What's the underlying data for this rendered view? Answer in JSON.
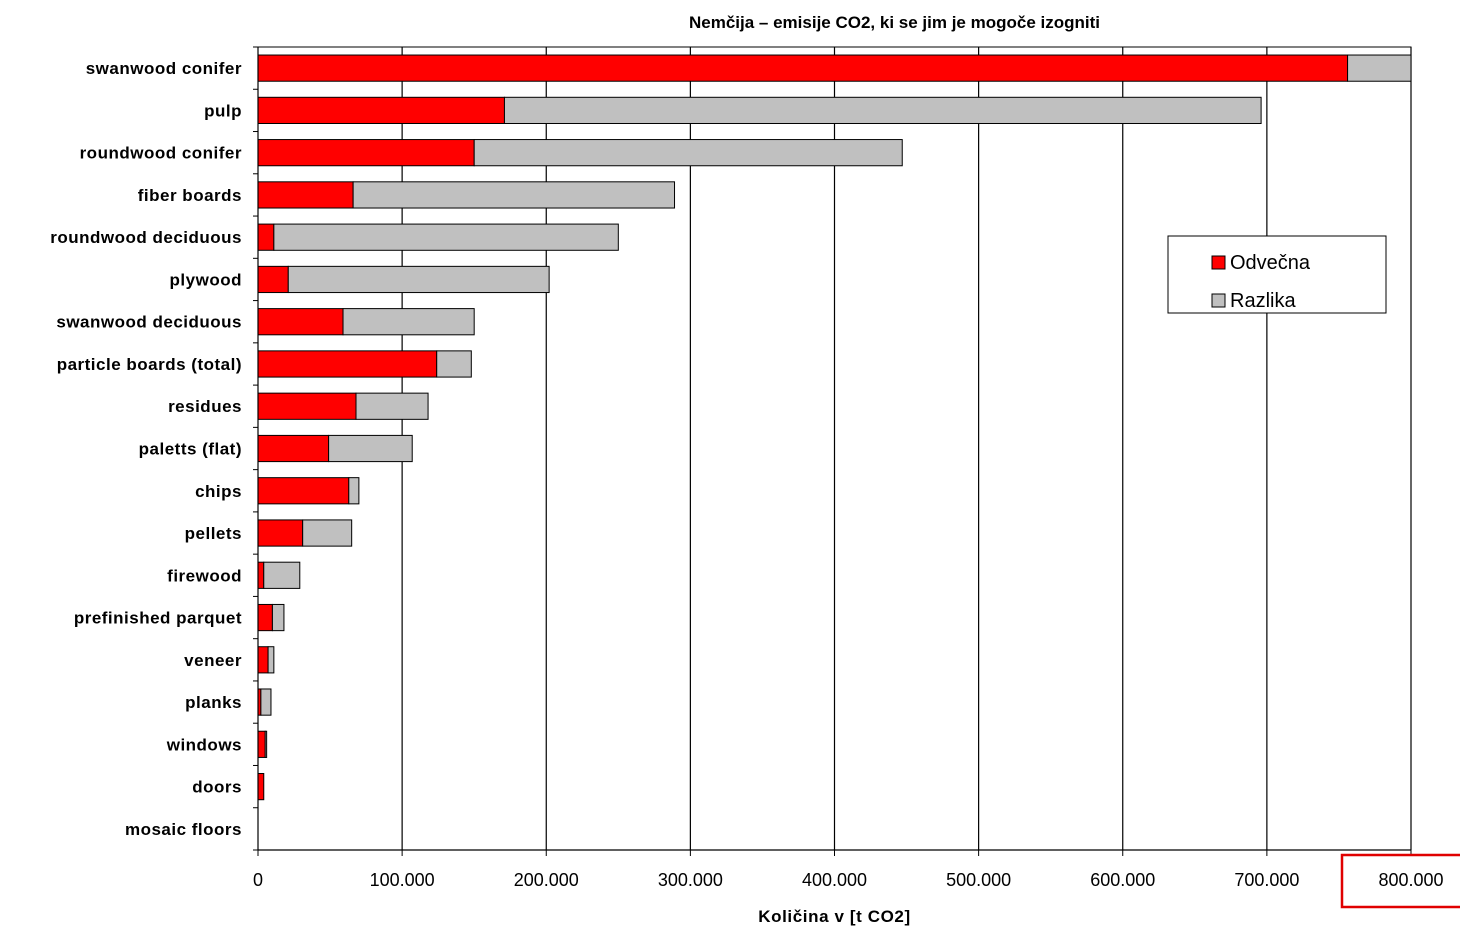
{
  "chart_data": {
    "type": "bar",
    "orientation": "horizontal",
    "stacked": true,
    "title": "Nemčija – emisije CO2, ki se jim je mogoče izogniti",
    "xlabel": "Količina v [t CO2]",
    "ylabel": "",
    "xlim": [
      0,
      800000
    ],
    "xticks": [
      0,
      100000,
      200000,
      300000,
      400000,
      500000,
      600000,
      700000,
      800000
    ],
    "xtick_labels": [
      "0",
      "100.000",
      "200.000",
      "300.000",
      "400.000",
      "500.000",
      "600.000",
      "700.000",
      "800.000"
    ],
    "grid": "vertical",
    "legend_position": "right",
    "categories": [
      "swanwood conifer",
      "pulp",
      "roundwood conifer",
      "fiber boards",
      "roundwood deciduous",
      "plywood",
      "swanwood deciduous",
      "particle boards (total)",
      "residues",
      "paletts (flat)",
      "chips",
      "pellets",
      "firewood",
      "prefinished parquet",
      "veneer",
      "planks",
      "windows",
      "doors",
      "mosaic floors"
    ],
    "series": [
      {
        "name": "Odvečna",
        "color": "#ff0000",
        "values": [
          756000,
          171000,
          150000,
          66000,
          11000,
          21000,
          59000,
          124000,
          68000,
          49000,
          63000,
          31000,
          4000,
          10000,
          7000,
          2000,
          5000,
          4000,
          0
        ]
      },
      {
        "name": "Razlika",
        "color": "#c0c0c0",
        "values": [
          44000,
          525000,
          297000,
          223000,
          239000,
          181000,
          91000,
          24000,
          50000,
          58000,
          7000,
          34000,
          25000,
          8000,
          4000,
          7000,
          1000,
          0,
          0
        ]
      }
    ]
  },
  "highlight": {
    "target": "800.000",
    "color": "#e00000"
  }
}
